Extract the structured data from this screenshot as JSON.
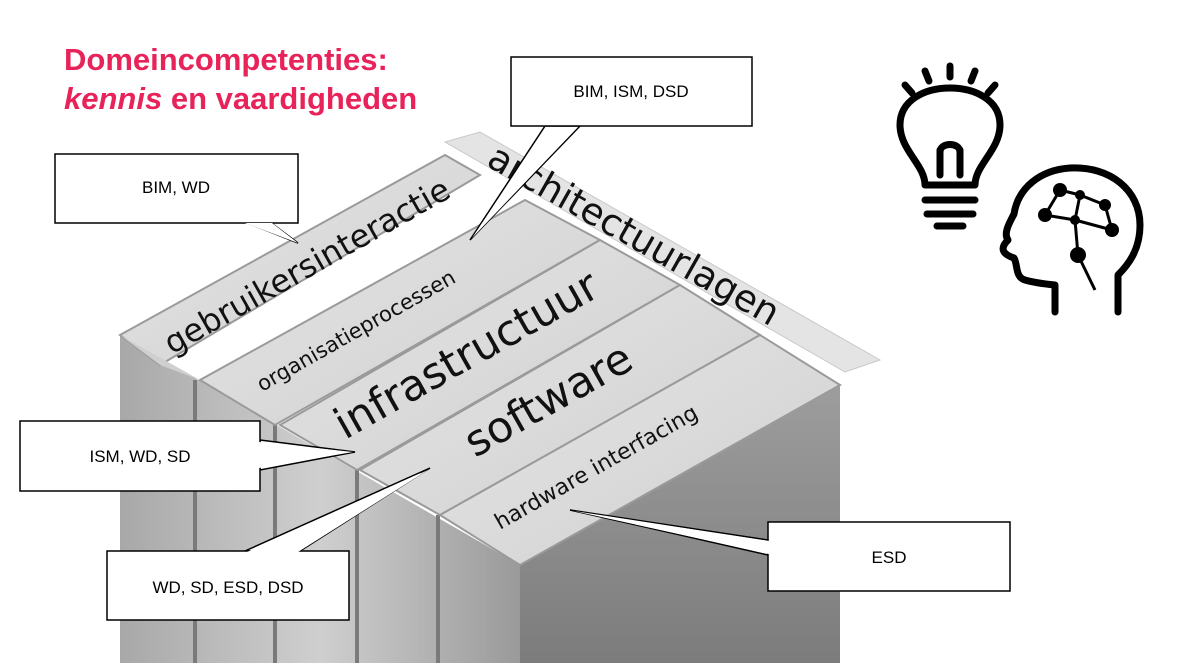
{
  "title": {
    "line1": "Domeincompetenties:",
    "line2_italic": "kennis",
    "line2_rest": " en vaardigheden"
  },
  "diagram": {
    "header_label": "architectuurlagen",
    "layers": [
      {
        "label": "gebruikersinteractie"
      },
      {
        "label": "organisatieprocessen"
      },
      {
        "label": "infrastructuur"
      },
      {
        "label": "software"
      },
      {
        "label": "hardware interfacing"
      }
    ]
  },
  "callouts": [
    {
      "text": "BIM, WD"
    },
    {
      "text": "BIM, ISM, DSD"
    },
    {
      "text": "ISM, WD, SD"
    },
    {
      "text": "WD, SD, ESD, DSD"
    },
    {
      "text": "ESD"
    }
  ],
  "icons": [
    "lightbulb-icon",
    "brain-head-icon"
  ],
  "colors": {
    "title": "#e8235a",
    "block_top": "#d9d9d9",
    "block_side": "#8f8f8f"
  }
}
